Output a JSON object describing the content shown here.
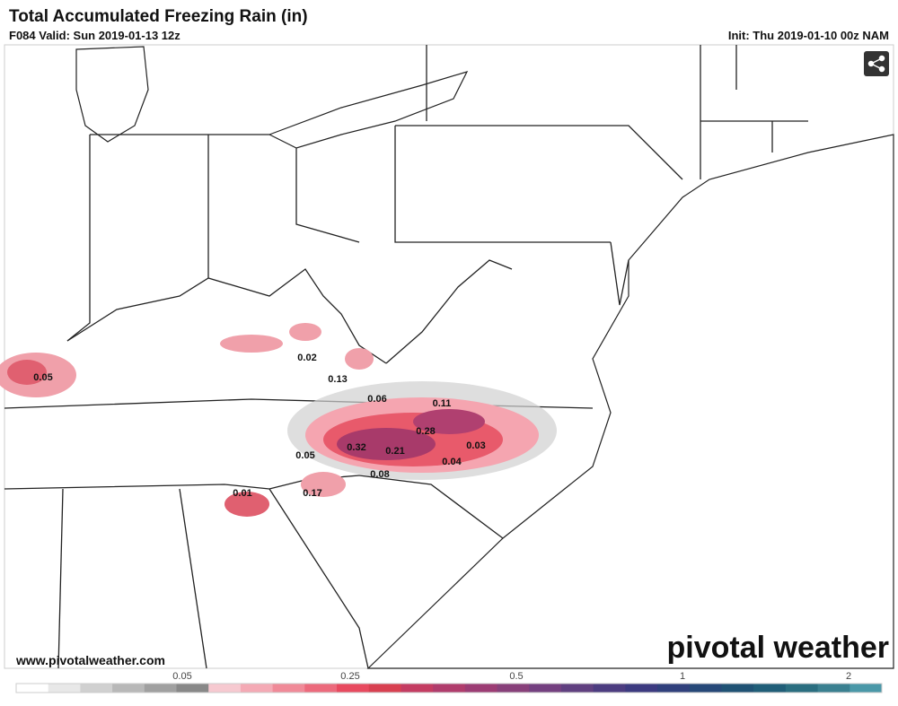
{
  "header": {
    "title": "Total Accumulated Freezing Rain (in)",
    "valid": "F084 Valid: Sun 2019-01-13 12z",
    "init": "Init: Thu 2019-01-10 00z NAM"
  },
  "map": {
    "labels": [
      "0.05",
      "0.02",
      "0.13",
      "0.06",
      "0.11",
      "0.28",
      "0.32",
      "0.21",
      "0.03",
      "0.05",
      "0.04",
      "0.08",
      "0.01",
      "0.17"
    ]
  },
  "footer": {
    "url": "www.pivotalweather.com",
    "logo": "pivotal weather"
  },
  "colorbar": {
    "ticks": [
      "0.05",
      "0.25",
      "0.5",
      "1",
      "2"
    ]
  }
}
